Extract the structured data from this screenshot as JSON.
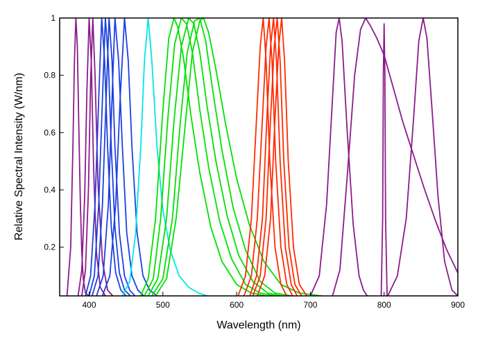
{
  "chart_data": {
    "type": "line",
    "title": "",
    "xlabel": "Wavelength (nm)",
    "ylabel": "Relative Spectral Intensity (W/nm)",
    "xlim": [
      360,
      900
    ],
    "ylim": [
      0.03,
      1.0
    ],
    "x_ticks": [
      400,
      500,
      600,
      700,
      800,
      900
    ],
    "x_tick_labels": [
      "400",
      "500",
      "600",
      "700",
      "800",
      "900"
    ],
    "y_ticks": [
      0.2,
      0.4,
      0.6,
      0.8,
      1.0
    ],
    "y_tick_labels": [
      "0.2",
      "0.4",
      "0.6",
      "0.8",
      "1"
    ],
    "grid": false,
    "legend": "none",
    "colors": {
      "violet": "#8b1a8b",
      "blue": "#1c3fe0",
      "cyan": "#00e5e5",
      "green": "#00e000",
      "red": "#ff2a00",
      "axis": "#000000"
    },
    "series": [
      {
        "color_key": "violet",
        "x": [
          370,
          375,
          378,
          380,
          382,
          384,
          386,
          388,
          390,
          392,
          395,
          400
        ],
        "y": [
          0.03,
          0.2,
          0.55,
          0.85,
          1.0,
          0.9,
          0.62,
          0.36,
          0.18,
          0.09,
          0.04,
          0.03
        ]
      },
      {
        "color_key": "violet",
        "x": [
          385,
          390,
          394,
          397,
          400,
          403,
          406,
          410,
          415,
          422
        ],
        "y": [
          0.03,
          0.12,
          0.38,
          0.75,
          1.0,
          0.84,
          0.48,
          0.18,
          0.06,
          0.03
        ]
      },
      {
        "color_key": "violet",
        "x": [
          390,
          395,
          399,
          402,
          405,
          408,
          412,
          418,
          425,
          432
        ],
        "y": [
          0.03,
          0.12,
          0.4,
          0.78,
          1.0,
          0.8,
          0.42,
          0.15,
          0.05,
          0.03
        ]
      },
      {
        "color_key": "blue",
        "x": [
          395,
          402,
          408,
          413,
          417,
          421,
          425,
          430,
          436,
          443,
          450
        ],
        "y": [
          0.03,
          0.1,
          0.35,
          0.72,
          1.0,
          0.85,
          0.55,
          0.27,
          0.11,
          0.05,
          0.03
        ]
      },
      {
        "color_key": "blue",
        "x": [
          400,
          407,
          413,
          418,
          422,
          426,
          430,
          435,
          441,
          448,
          456
        ],
        "y": [
          0.03,
          0.1,
          0.35,
          0.72,
          1.0,
          0.85,
          0.55,
          0.27,
          0.11,
          0.05,
          0.03
        ]
      },
      {
        "color_key": "blue",
        "x": [
          404,
          412,
          418,
          423,
          427,
          431,
          435,
          441,
          448,
          455,
          462
        ],
        "y": [
          0.03,
          0.1,
          0.35,
          0.72,
          1.0,
          0.85,
          0.55,
          0.25,
          0.1,
          0.05,
          0.03
        ]
      },
      {
        "color_key": "blue",
        "x": [
          410,
          419,
          426,
          431,
          435,
          440,
          445,
          451,
          458,
          466,
          474
        ],
        "y": [
          0.03,
          0.1,
          0.35,
          0.72,
          1.0,
          0.85,
          0.55,
          0.25,
          0.1,
          0.05,
          0.03
        ]
      },
      {
        "color_key": "blue",
        "x": [
          418,
          428,
          436,
          442,
          448,
          453,
          458,
          465,
          473,
          482,
          492
        ],
        "y": [
          0.03,
          0.1,
          0.35,
          0.72,
          1.0,
          0.85,
          0.55,
          0.25,
          0.1,
          0.05,
          0.03
        ]
      },
      {
        "color_key": "cyan",
        "x": [
          445,
          455,
          463,
          470,
          475,
          480,
          485,
          492,
          500,
          510,
          522,
          535,
          548,
          560
        ],
        "y": [
          0.03,
          0.08,
          0.25,
          0.55,
          0.85,
          1.0,
          0.85,
          0.55,
          0.33,
          0.19,
          0.1,
          0.06,
          0.04,
          0.03
        ]
      },
      {
        "color_key": "green",
        "x": [
          470,
          480,
          490,
          500,
          508,
          515,
          520,
          528,
          538,
          550,
          565,
          580,
          600,
          620,
          640
        ],
        "y": [
          0.03,
          0.09,
          0.3,
          0.68,
          0.93,
          1.0,
          0.97,
          0.86,
          0.66,
          0.46,
          0.27,
          0.15,
          0.07,
          0.04,
          0.03
        ]
      },
      {
        "color_key": "green",
        "x": [
          475,
          487,
          497,
          507,
          516,
          525,
          532,
          540,
          550,
          562,
          577,
          593,
          612,
          632,
          652
        ],
        "y": [
          0.03,
          0.09,
          0.3,
          0.66,
          0.91,
          1.0,
          0.98,
          0.88,
          0.68,
          0.48,
          0.29,
          0.16,
          0.07,
          0.04,
          0.03
        ]
      },
      {
        "color_key": "green",
        "x": [
          480,
          493,
          505,
          515,
          525,
          535,
          542,
          550,
          560,
          572,
          587,
          603,
          622,
          642,
          662
        ],
        "y": [
          0.03,
          0.09,
          0.3,
          0.64,
          0.9,
          1.0,
          0.98,
          0.88,
          0.69,
          0.5,
          0.31,
          0.17,
          0.08,
          0.04,
          0.03
        ]
      },
      {
        "color_key": "green",
        "x": [
          485,
          500,
          513,
          523,
          533,
          543,
          550,
          558,
          568,
          580,
          595,
          612,
          632,
          652,
          675
        ],
        "y": [
          0.03,
          0.09,
          0.3,
          0.62,
          0.88,
          0.99,
          1.0,
          0.92,
          0.74,
          0.54,
          0.34,
          0.19,
          0.08,
          0.04,
          0.03
        ]
      },
      {
        "color_key": "green",
        "x": [
          490,
          505,
          518,
          530,
          540,
          550,
          555,
          562,
          572,
          585,
          600,
          617,
          637,
          660,
          685,
          715
        ],
        "y": [
          0.03,
          0.09,
          0.3,
          0.62,
          0.88,
          0.99,
          1.0,
          0.95,
          0.82,
          0.63,
          0.44,
          0.28,
          0.15,
          0.07,
          0.04,
          0.03
        ]
      },
      {
        "color_key": "red",
        "x": [
          602,
          612,
          620,
          627,
          632,
          636,
          640,
          645,
          652,
          660,
          668
        ],
        "y": [
          0.03,
          0.1,
          0.3,
          0.65,
          0.9,
          1.0,
          0.85,
          0.5,
          0.2,
          0.07,
          0.03
        ]
      },
      {
        "color_key": "red",
        "x": [
          610,
          620,
          628,
          635,
          640,
          644,
          648,
          653,
          660,
          668,
          676
        ],
        "y": [
          0.03,
          0.1,
          0.3,
          0.65,
          0.9,
          1.0,
          0.85,
          0.5,
          0.2,
          0.07,
          0.03
        ]
      },
      {
        "color_key": "red",
        "x": [
          618,
          627,
          635,
          641,
          646,
          650,
          654,
          659,
          666,
          674,
          682
        ],
        "y": [
          0.03,
          0.1,
          0.3,
          0.65,
          0.9,
          1.0,
          0.85,
          0.5,
          0.2,
          0.07,
          0.03
        ]
      },
      {
        "color_key": "red",
        "x": [
          622,
          632,
          640,
          646,
          651,
          655,
          659,
          664,
          671,
          679,
          688
        ],
        "y": [
          0.03,
          0.1,
          0.3,
          0.65,
          0.9,
          1.0,
          0.85,
          0.5,
          0.2,
          0.07,
          0.03
        ]
      },
      {
        "color_key": "red",
        "x": [
          628,
          638,
          646,
          652,
          657,
          661,
          665,
          670,
          677,
          685,
          695
        ],
        "y": [
          0.03,
          0.1,
          0.3,
          0.65,
          0.9,
          1.0,
          0.85,
          0.5,
          0.2,
          0.07,
          0.03
        ]
      },
      {
        "color_key": "violet",
        "x": [
          700,
          712,
          722,
          730,
          735,
          739,
          743,
          750,
          758,
          766,
          772,
          777
        ],
        "y": [
          0.03,
          0.1,
          0.35,
          0.72,
          0.95,
          1.0,
          0.92,
          0.6,
          0.28,
          0.1,
          0.05,
          0.03
        ]
      },
      {
        "color_key": "violet",
        "x": [
          730,
          740,
          750,
          760,
          768,
          775,
          782,
          790,
          800,
          812,
          825,
          840,
          855,
          870,
          885,
          900
        ],
        "y": [
          0.03,
          0.12,
          0.45,
          0.8,
          0.96,
          1.0,
          0.97,
          0.93,
          0.87,
          0.76,
          0.64,
          0.52,
          0.4,
          0.29,
          0.19,
          0.11
        ]
      },
      {
        "color_key": "violet",
        "x": [
          796,
          798,
          799,
          800,
          801,
          802,
          804
        ],
        "y": [
          0.03,
          0.3,
          0.8,
          0.98,
          0.8,
          0.3,
          0.03
        ]
      },
      {
        "color_key": "violet",
        "x": [
          805,
          818,
          830,
          840,
          847,
          853,
          858,
          865,
          873,
          882,
          892,
          900
        ],
        "y": [
          0.03,
          0.1,
          0.3,
          0.65,
          0.92,
          1.0,
          0.93,
          0.68,
          0.38,
          0.15,
          0.05,
          0.03
        ]
      }
    ]
  }
}
